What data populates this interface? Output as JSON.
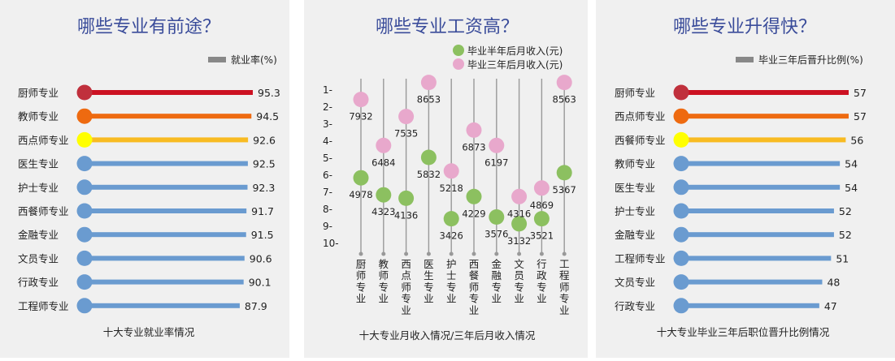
{
  "chart_data": [
    {
      "type": "bar",
      "title": "哪些专业有前途？",
      "subtitle": "十大专业就业率情况",
      "legend": [
        {
          "label": "就业率(%)",
          "color": "#888888"
        }
      ],
      "categories": [
        "厨师专业",
        "教师专业",
        "西点师专业",
        "医生专业",
        "护士专业",
        "西餐师专业",
        "金融专业",
        "文员专业",
        "行政专业",
        "工程师专业"
      ],
      "value_labels": [
        "95.3",
        "94.5",
        "92.6",
        "92.5",
        "92.3",
        "91.7",
        "91.5",
        "90.6",
        "90.1",
        "87.9"
      ],
      "values": [
        95.3,
        94.5,
        92.6,
        92.5,
        92.3,
        91.7,
        91.5,
        90.6,
        90.1,
        87.9
      ],
      "colors": [
        "#cc1122",
        "#ee6a10",
        "#f8bb22",
        "#6a9bd0",
        "#6a9bd0",
        "#6a9bd0",
        "#6a9bd0",
        "#6a9bd0",
        "#6a9bd0",
        "#6a9bd0"
      ],
      "dot_colors": [
        "#c0303c",
        "#ee6a10",
        "#ffff00",
        "#6a9bd0",
        "#6a9bd0",
        "#6a9bd0",
        "#6a9bd0",
        "#6a9bd0",
        "#6a9bd0",
        "#6a9bd0"
      ],
      "xlim": [
        0,
        95.3
      ]
    },
    {
      "type": "scatter",
      "title": "哪些专业工资高？",
      "subtitle": "十大专业月收入情况/三年后月收入情况",
      "categories": [
        "厨师专业",
        "教师专业",
        "西点师专业",
        "医生专业",
        "护士专业",
        "西餐师专业",
        "金融专业",
        "文员专业",
        "行政专业",
        "工程师专业"
      ],
      "y_ticks": [
        "1-",
        "2-",
        "3-",
        "4-",
        "5-",
        "6-",
        "7-",
        "8-",
        "9-",
        "10-"
      ],
      "ylim": [
        1,
        10
      ],
      "series": [
        {
          "name": "毕业半年后月收入(元)",
          "color": "#8cc060",
          "labels": [
            "4978",
            "4323",
            "4136",
            "5832",
            "3426",
            "4229",
            "3576",
            "3132",
            "3521",
            "5367"
          ],
          "values": [
            4978,
            4323,
            4136,
            5832,
            3426,
            4229,
            3576,
            3132,
            3521,
            5367
          ],
          "y": [
            6.2,
            7.2,
            7.4,
            5.0,
            8.6,
            7.3,
            8.5,
            8.9,
            8.6,
            5.9
          ]
        },
        {
          "name": "毕业三年后月收入(元)",
          "color": "#e8a8cc",
          "labels": [
            "7932",
            "6484",
            "7535",
            "8653",
            "5218",
            "6873",
            "6197",
            "4316",
            "4869",
            "8563"
          ],
          "values": [
            7932,
            6484,
            7535,
            8653,
            5218,
            6873,
            6197,
            4316,
            4869,
            8563
          ],
          "y": [
            1.6,
            4.3,
            2.6,
            0.6,
            5.8,
            3.4,
            4.3,
            7.3,
            6.8,
            0.6
          ]
        }
      ]
    },
    {
      "type": "bar",
      "title": "哪些专业升得快？",
      "subtitle": "十大专业毕业三年后职位晋升比例情况",
      "legend": [
        {
          "label": "毕业三年后晋升比例(%)",
          "color": "#888888"
        }
      ],
      "categories": [
        "厨师专业",
        "西点师专业",
        "西餐师专业",
        "教师专业",
        "医生专业",
        "护士专业",
        "金融专业",
        "工程师专业",
        "文员专业",
        "行政专业"
      ],
      "value_labels": [
        "57",
        "57",
        "56",
        "54",
        "54",
        "52",
        "52",
        "51",
        "48",
        "47"
      ],
      "values": [
        57,
        57,
        56,
        54,
        54,
        52,
        52,
        51,
        48,
        47
      ],
      "colors": [
        "#cc1122",
        "#ee6a10",
        "#f8bb22",
        "#6a9bd0",
        "#6a9bd0",
        "#6a9bd0",
        "#6a9bd0",
        "#6a9bd0",
        "#6a9bd0",
        "#6a9bd0"
      ],
      "dot_colors": [
        "#c0303c",
        "#ee6a10",
        "#ffff00",
        "#6a9bd0",
        "#6a9bd0",
        "#6a9bd0",
        "#6a9bd0",
        "#6a9bd0",
        "#6a9bd0",
        "#6a9bd0"
      ],
      "xlim": [
        0,
        57
      ]
    }
  ],
  "colors": {
    "title": "#3a4c9a",
    "text": "#222222",
    "panel_bg": "#f0f0f0",
    "axis": "#999999"
  }
}
